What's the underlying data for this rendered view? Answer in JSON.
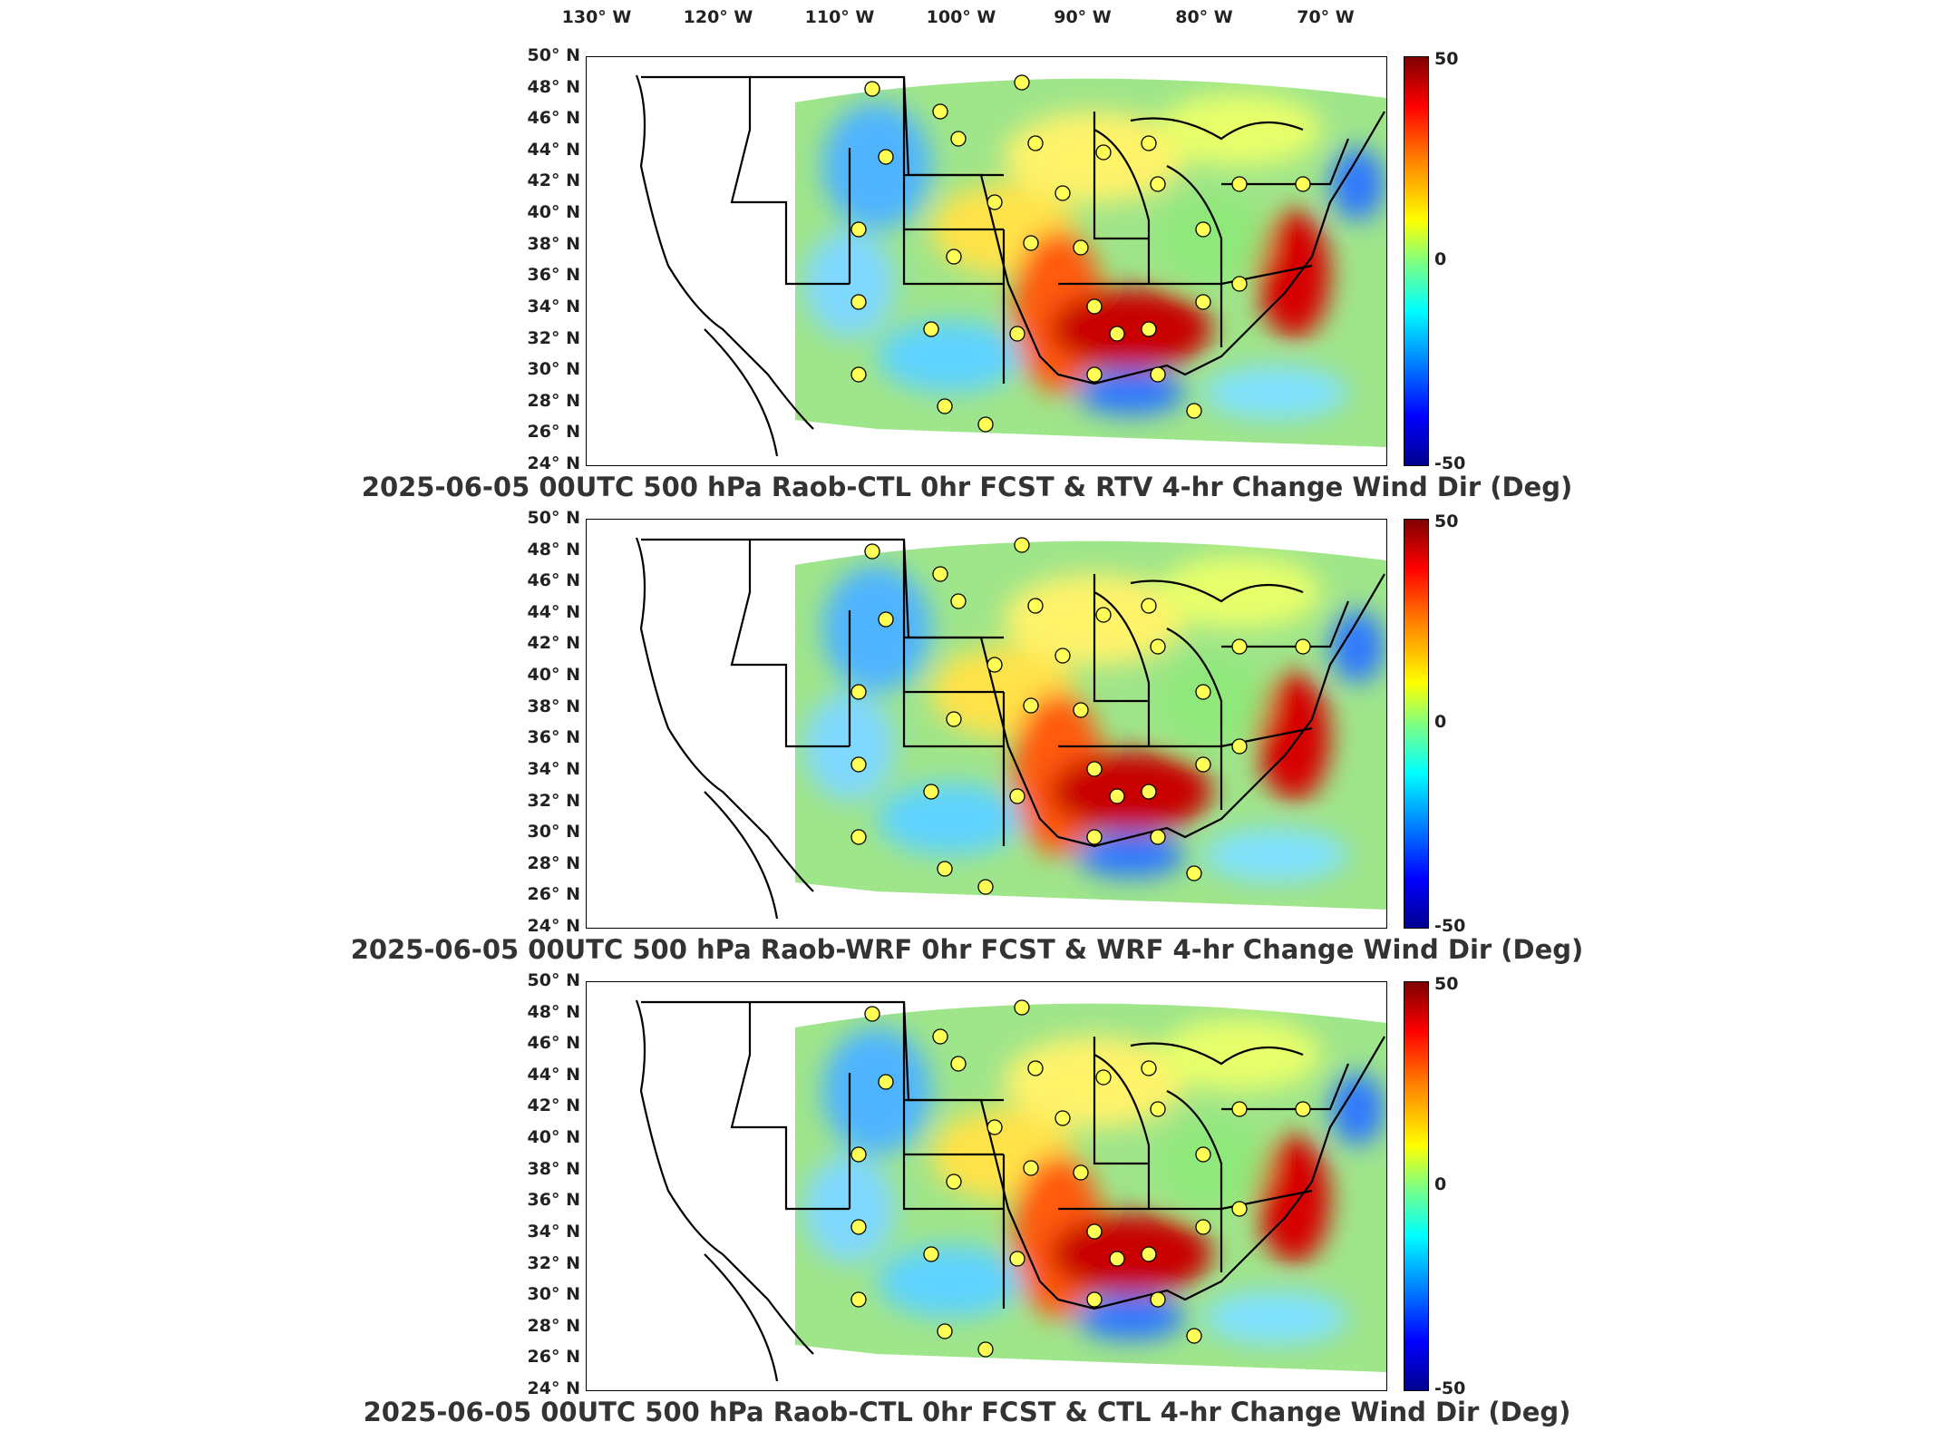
{
  "longitude_labels": [
    "130° W",
    "120° W",
    "110° W",
    "100° W",
    "90° W",
    "80° W",
    "70° W"
  ],
  "latitude_labels": [
    "50° N",
    "48° N",
    "46° N",
    "44° N",
    "42° N",
    "40° N",
    "38° N",
    "36° N",
    "34° N",
    "32° N",
    "30° N",
    "28° N",
    "26° N",
    "24° N"
  ],
  "colorbar": {
    "max": "50",
    "mid": "0",
    "min": "-50"
  },
  "panels": [
    {
      "title": "2025-06-05 00UTC 500 hPa Raob-CTL 0hr FCST & RTV 4-hr Change Wind Dir (Deg)"
    },
    {
      "title": "2025-06-05 00UTC 500 hPa Raob-WRF 0hr FCST & WRF 4-hr Change Wind Dir (Deg)"
    },
    {
      "title": "2025-06-05 00UTC 500 hPa Raob-CTL 0hr FCST & CTL 4-hr Change Wind Dir (Deg)"
    }
  ],
  "colors": {
    "dark_red": "#8b0000",
    "red": "#ff0000",
    "orange": "#ff8c00",
    "yellow": "#ffff00",
    "green": "#7fff7f",
    "cyan": "#00ffff",
    "blue": "#0040ff",
    "dark_blue": "#00008b"
  }
}
